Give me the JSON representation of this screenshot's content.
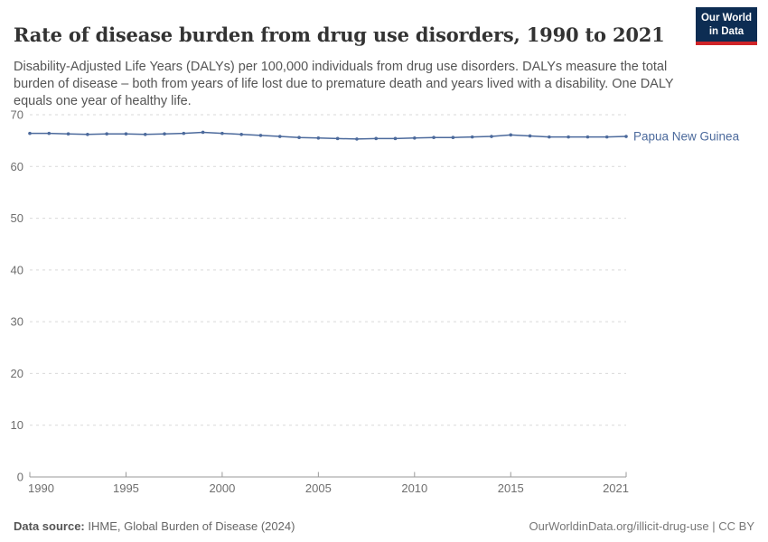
{
  "header": {
    "title": "Rate of disease burden from drug use disorders, 1990 to 2021",
    "subtitle": "Disability-Adjusted Life Years (DALYs) per 100,000 individuals from drug use disorders. DALYs measure the total burden of disease – both from years of life lost due to premature death and years lived with a disability. One DALY equals one year of healthy life.",
    "logo": {
      "line1": "Our World",
      "line2": "in Data",
      "bg": "#0d2d53",
      "stripe": "#cf2428"
    }
  },
  "chart_data": {
    "type": "line",
    "title": "Rate of disease burden from drug use disorders, 1990 to 2021",
    "ylabel": "",
    "xlabel": "",
    "x": [
      1990,
      1991,
      1992,
      1993,
      1994,
      1995,
      1996,
      1997,
      1998,
      1999,
      2000,
      2001,
      2002,
      2003,
      2004,
      2005,
      2006,
      2007,
      2008,
      2009,
      2010,
      2011,
      2012,
      2013,
      2014,
      2015,
      2016,
      2017,
      2018,
      2019,
      2020,
      2021
    ],
    "series": [
      {
        "name": "Papua New Guinea",
        "color": "#4C6A9C",
        "values": [
          66.4,
          66.4,
          66.3,
          66.2,
          66.3,
          66.3,
          66.2,
          66.3,
          66.4,
          66.6,
          66.4,
          66.2,
          66.0,
          65.8,
          65.6,
          65.5,
          65.4,
          65.3,
          65.4,
          65.4,
          65.5,
          65.6,
          65.6,
          65.7,
          65.8,
          66.1,
          65.9,
          65.7,
          65.7,
          65.7,
          65.7,
          65.8
        ]
      }
    ],
    "ylim": [
      0,
      70
    ],
    "yticks": [
      0,
      10,
      20,
      30,
      40,
      50,
      60,
      70
    ],
    "xticks": [
      1990,
      1995,
      2000,
      2005,
      2010,
      2015,
      2021
    ],
    "grid": true,
    "grid_style": "dashed",
    "legend_position": "end-of-line"
  },
  "footer": {
    "source_label": "Data source:",
    "source_text": " IHME, Global Burden of Disease (2024)",
    "license_text": "OurWorldinData.org/illicit-drug-use | CC BY"
  },
  "colors": {
    "accent": "#4C6A9C",
    "grid": "#d9d9d9",
    "axis_line": "#9a9a9a",
    "axis_text": "#6e6e6e"
  }
}
